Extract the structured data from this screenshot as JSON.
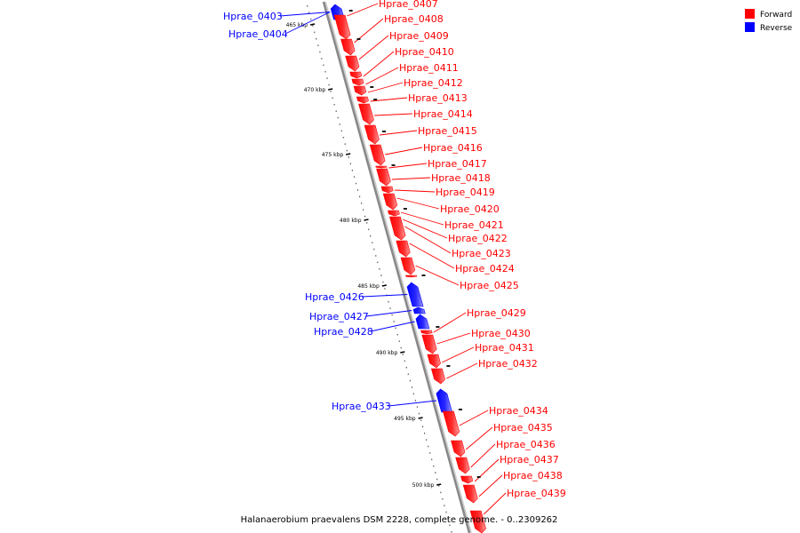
{
  "caption": "Halanaerobium praevalens DSM 2228, complete genome. - 0..2309262",
  "legend": [
    {
      "label": "Forward",
      "color": "#ff0000"
    },
    {
      "label": "Reverse",
      "color": "#0000ff"
    }
  ],
  "colors": {
    "forward": "#ff0000",
    "reverse": "#0000ff",
    "backbone": "#888888"
  },
  "ticks": [
    "465 kbp",
    "470 kbp",
    "475 kbp",
    "480 kbp",
    "485 kbp",
    "490 kbp",
    "495 kbp",
    "500 kbp"
  ],
  "genes": [
    {
      "name": "Hprae_0403",
      "strand": "reverse"
    },
    {
      "name": "Hprae_0404",
      "strand": "reverse"
    },
    {
      "name": "Hprae_0407",
      "strand": "forward"
    },
    {
      "name": "Hprae_0408",
      "strand": "forward"
    },
    {
      "name": "Hprae_0409",
      "strand": "forward"
    },
    {
      "name": "Hprae_0410",
      "strand": "forward"
    },
    {
      "name": "Hprae_0411",
      "strand": "forward"
    },
    {
      "name": "Hprae_0412",
      "strand": "forward"
    },
    {
      "name": "Hprae_0413",
      "strand": "forward"
    },
    {
      "name": "Hprae_0414",
      "strand": "forward"
    },
    {
      "name": "Hprae_0415",
      "strand": "forward"
    },
    {
      "name": "Hprae_0416",
      "strand": "forward"
    },
    {
      "name": "Hprae_0417",
      "strand": "forward"
    },
    {
      "name": "Hprae_0418",
      "strand": "forward"
    },
    {
      "name": "Hprae_0419",
      "strand": "forward"
    },
    {
      "name": "Hprae_0420",
      "strand": "forward"
    },
    {
      "name": "Hprae_0421",
      "strand": "forward"
    },
    {
      "name": "Hprae_0422",
      "strand": "forward"
    },
    {
      "name": "Hprae_0423",
      "strand": "forward"
    },
    {
      "name": "Hprae_0424",
      "strand": "forward"
    },
    {
      "name": "Hprae_0425",
      "strand": "forward"
    },
    {
      "name": "Hprae_0426",
      "strand": "reverse"
    },
    {
      "name": "Hprae_0427",
      "strand": "reverse"
    },
    {
      "name": "Hprae_0428",
      "strand": "reverse"
    },
    {
      "name": "Hprae_0429",
      "strand": "forward"
    },
    {
      "name": "Hprae_0430",
      "strand": "forward"
    },
    {
      "name": "Hprae_0431",
      "strand": "forward"
    },
    {
      "name": "Hprae_0432",
      "strand": "forward"
    },
    {
      "name": "Hprae_0433",
      "strand": "reverse"
    },
    {
      "name": "Hprae_0434",
      "strand": "forward"
    },
    {
      "name": "Hprae_0435",
      "strand": "forward"
    },
    {
      "name": "Hprae_0436",
      "strand": "forward"
    },
    {
      "name": "Hprae_0437",
      "strand": "forward"
    },
    {
      "name": "Hprae_0438",
      "strand": "forward"
    },
    {
      "name": "Hprae_0439",
      "strand": "forward"
    }
  ]
}
